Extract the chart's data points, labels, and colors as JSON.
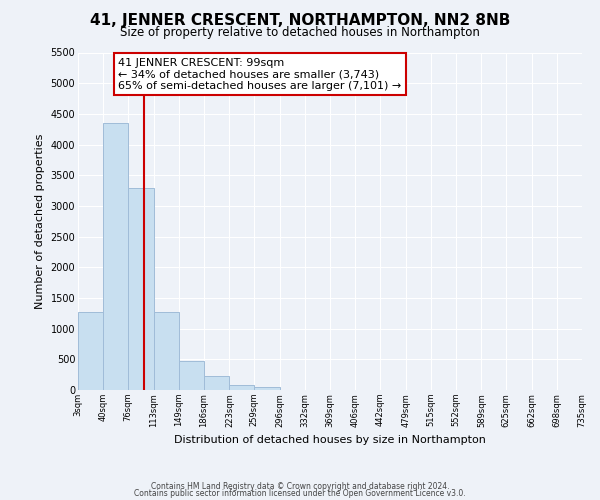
{
  "title": "41, JENNER CRESCENT, NORTHAMPTON, NN2 8NB",
  "subtitle": "Size of property relative to detached houses in Northampton",
  "xlabel": "Distribution of detached houses by size in Northampton",
  "ylabel": "Number of detached properties",
  "bar_color": "#c8dff0",
  "bar_edge_color": "#a0bcd8",
  "background_color": "#eef2f8",
  "grid_color": "#ffffff",
  "property_line_color": "#cc0000",
  "property_x": 99,
  "annotation_line1": "41 JENNER CRESCENT: 99sqm",
  "annotation_line2": "← 34% of detached houses are smaller (3,743)",
  "annotation_line3": "65% of semi-detached houses are larger (7,101) →",
  "annotation_box_color": "white",
  "annotation_box_edge_color": "#cc0000",
  "bin_edges": [
    3,
    40,
    76,
    113,
    149,
    186,
    223,
    259,
    296,
    332,
    369,
    406,
    442,
    479,
    515,
    552,
    589,
    625,
    662,
    698,
    735
  ],
  "bar_heights": [
    1270,
    4350,
    3300,
    1270,
    480,
    235,
    80,
    50,
    0,
    0,
    0,
    0,
    0,
    0,
    0,
    0,
    0,
    0,
    0,
    0
  ],
  "ylim": [
    0,
    5500
  ],
  "xlim": [
    3,
    735
  ],
  "yticks": [
    0,
    500,
    1000,
    1500,
    2000,
    2500,
    3000,
    3500,
    4000,
    4500,
    5000,
    5500
  ],
  "xtick_labels": [
    "3sqm",
    "40sqm",
    "76sqm",
    "113sqm",
    "149sqm",
    "186sqm",
    "223sqm",
    "259sqm",
    "296sqm",
    "332sqm",
    "369sqm",
    "406sqm",
    "442sqm",
    "479sqm",
    "515sqm",
    "552sqm",
    "589sqm",
    "625sqm",
    "662sqm",
    "698sqm",
    "735sqm"
  ],
  "footer1": "Contains HM Land Registry data © Crown copyright and database right 2024.",
  "footer2": "Contains public sector information licensed under the Open Government Licence v3.0."
}
